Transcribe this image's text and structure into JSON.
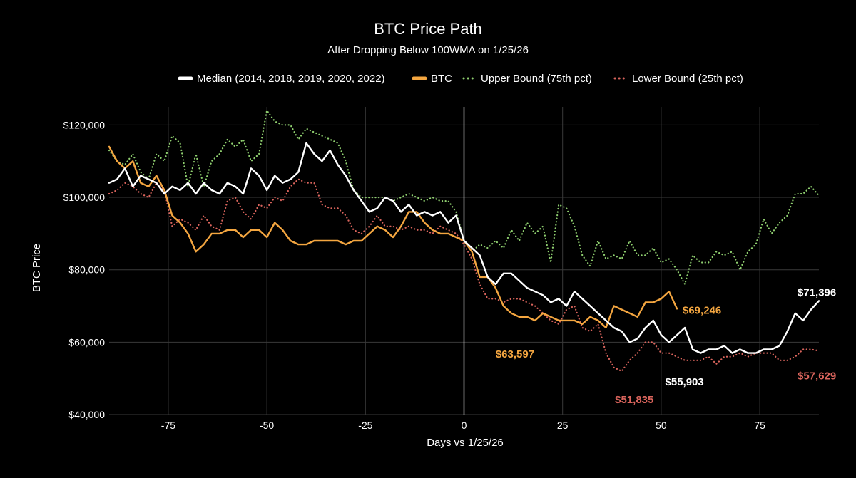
{
  "colors": {
    "background": "#000000",
    "median": "#ffffff",
    "btc": "#f4a640",
    "upper": "#8fcf6f",
    "lower": "#d9645c",
    "grid": "#3a3a3a"
  },
  "chart_data": {
    "type": "line",
    "title": "BTC Price Path",
    "subtitle": "After Dropping Below 100WMA on 1/25/26",
    "xlabel": "Days vs 1/25/26",
    "ylabel": "BTC Price",
    "xlim": [
      -90,
      90
    ],
    "ylim": [
      40000,
      125000
    ],
    "xticks": [
      -75,
      -50,
      -25,
      0,
      25,
      50,
      75
    ],
    "yticks": [
      40000,
      60000,
      80000,
      100000,
      120000
    ],
    "ytick_labels": [
      "$40,000",
      "$60,000",
      "$80,000",
      "$100,000",
      "$120,000"
    ],
    "legend": "top-center",
    "series": [
      {
        "name": "Median (2014, 2018, 2019, 2020, 2022)",
        "style": "solid",
        "x": [
          -90,
          -88,
          -86,
          -84,
          -82,
          -80,
          -78,
          -76,
          -74,
          -72,
          -70,
          -68,
          -66,
          -64,
          -62,
          -60,
          -58,
          -56,
          -54,
          -52,
          -50,
          -48,
          -46,
          -44,
          -42,
          -40,
          -38,
          -36,
          -34,
          -32,
          -30,
          -28,
          -26,
          -24,
          -22,
          -20,
          -18,
          -16,
          -14,
          -12,
          -10,
          -8,
          -6,
          -4,
          -2,
          0,
          2,
          4,
          6,
          8,
          10,
          12,
          14,
          16,
          18,
          20,
          22,
          24,
          26,
          28,
          30,
          32,
          34,
          36,
          38,
          40,
          42,
          44,
          46,
          48,
          50,
          52,
          54,
          56,
          58,
          60,
          62,
          64,
          66,
          68,
          70,
          72,
          74,
          76,
          78,
          80,
          82,
          84,
          86,
          88,
          90
        ],
        "values": [
          104000,
          105000,
          108000,
          103000,
          106000,
          105000,
          104000,
          101000,
          103000,
          102000,
          104000,
          101000,
          104000,
          102000,
          101000,
          104000,
          103000,
          101000,
          108000,
          106000,
          102000,
          106000,
          104000,
          105000,
          107000,
          115000,
          112000,
          110000,
          113000,
          109000,
          106000,
          102000,
          99000,
          96000,
          97000,
          100000,
          99000,
          96000,
          98000,
          95000,
          96000,
          95000,
          96000,
          93000,
          95000,
          88000,
          86000,
          84000,
          78000,
          76000,
          79000,
          79000,
          77000,
          75000,
          74000,
          73000,
          71000,
          72000,
          70000,
          74000,
          72000,
          70000,
          68000,
          66000,
          64000,
          63000,
          60000,
          61000,
          64000,
          66000,
          62000,
          60000,
          62000,
          64000,
          58000,
          57000,
          58000,
          58000,
          59000,
          57000,
          58000,
          57000,
          57000,
          58000,
          58000,
          59000,
          63000,
          68000,
          66000,
          69000,
          71396
        ]
      },
      {
        "name": "BTC",
        "style": "solid",
        "x": [
          -90,
          -88,
          -86,
          -84,
          -82,
          -80,
          -78,
          -76,
          -74,
          -72,
          -70,
          -68,
          -66,
          -64,
          -62,
          -60,
          -58,
          -56,
          -54,
          -52,
          -50,
          -48,
          -46,
          -44,
          -42,
          -40,
          -38,
          -36,
          -34,
          -32,
          -30,
          -28,
          -26,
          -24,
          -22,
          -20,
          -18,
          -16,
          -14,
          -12,
          -10,
          -8,
          -6,
          -4,
          -2,
          0,
          2,
          4,
          6,
          8,
          10,
          12,
          14,
          16,
          18,
          20,
          22,
          24,
          26,
          28,
          30,
          32,
          34,
          36,
          38,
          40,
          42,
          44,
          46,
          48,
          50,
          52,
          54
        ],
        "values": [
          114000,
          110000,
          108000,
          110000,
          104000,
          103000,
          106000,
          102000,
          95000,
          93000,
          90000,
          85000,
          87000,
          90000,
          90000,
          91000,
          91000,
          89000,
          91000,
          91000,
          89000,
          93000,
          91000,
          88000,
          87000,
          87000,
          88000,
          88000,
          88000,
          88000,
          87000,
          88000,
          88000,
          90000,
          92000,
          91000,
          89000,
          92000,
          96000,
          96000,
          93000,
          91000,
          90000,
          90000,
          89000,
          88000,
          85000,
          78000,
          78000,
          75000,
          70000,
          68000,
          67000,
          67000,
          66000,
          68000,
          67000,
          66000,
          66000,
          66000,
          65000,
          67000,
          66000,
          64000,
          70000,
          69000,
          68000,
          67000,
          71000,
          71000,
          72000,
          74000,
          69246
        ]
      },
      {
        "name": "Upper Bound (75th pct)",
        "style": "dotted",
        "x": [
          -90,
          -88,
          -86,
          -84,
          -82,
          -80,
          -78,
          -76,
          -74,
          -72,
          -70,
          -68,
          -66,
          -64,
          -62,
          -60,
          -58,
          -56,
          -54,
          -52,
          -50,
          -48,
          -46,
          -44,
          -42,
          -40,
          -38,
          -36,
          -34,
          -32,
          -30,
          -28,
          -26,
          -24,
          -22,
          -20,
          -18,
          -16,
          -14,
          -12,
          -10,
          -8,
          -6,
          -4,
          -2,
          0,
          2,
          4,
          6,
          8,
          10,
          12,
          14,
          16,
          18,
          20,
          22,
          24,
          26,
          28,
          30,
          32,
          34,
          36,
          38,
          40,
          42,
          44,
          46,
          48,
          50,
          52,
          54,
          56,
          58,
          60,
          62,
          64,
          66,
          68,
          70,
          72,
          74,
          76,
          78,
          80,
          82,
          84,
          86,
          88,
          90
        ],
        "values": [
          113000,
          110000,
          109000,
          112000,
          107000,
          105000,
          112000,
          110000,
          117000,
          115000,
          103000,
          112000,
          103000,
          110000,
          112000,
          116000,
          114000,
          116000,
          110000,
          112000,
          124000,
          121000,
          120000,
          120000,
          116000,
          119000,
          118000,
          117000,
          116000,
          115000,
          110000,
          102000,
          100000,
          100000,
          100000,
          100000,
          99000,
          100000,
          101000,
          100000,
          99000,
          100000,
          99000,
          99000,
          96000,
          88000,
          85000,
          87000,
          86000,
          88000,
          86000,
          91000,
          88000,
          93000,
          90000,
          92000,
          82000,
          98000,
          97000,
          92000,
          84000,
          81000,
          88000,
          83000,
          84000,
          83000,
          88000,
          84000,
          84000,
          86000,
          82000,
          83000,
          80000,
          76000,
          84000,
          82000,
          82000,
          85000,
          84000,
          85000,
          80000,
          85000,
          87000,
          94000,
          90000,
          93000,
          95000,
          101000,
          101000,
          103000,
          100500
        ]
      },
      {
        "name": "Lower Bound (25th pct)",
        "style": "dotted",
        "x": [
          -90,
          -88,
          -86,
          -84,
          -82,
          -80,
          -78,
          -76,
          -74,
          -72,
          -70,
          -68,
          -66,
          -64,
          -62,
          -60,
          -58,
          -56,
          -54,
          -52,
          -50,
          -48,
          -46,
          -44,
          -42,
          -40,
          -38,
          -36,
          -34,
          -32,
          -30,
          -28,
          -26,
          -24,
          -22,
          -20,
          -18,
          -16,
          -14,
          -12,
          -10,
          -8,
          -6,
          -4,
          -2,
          0,
          2,
          4,
          6,
          8,
          10,
          12,
          14,
          16,
          18,
          20,
          22,
          24,
          26,
          28,
          30,
          32,
          34,
          36,
          38,
          40,
          42,
          44,
          46,
          48,
          50,
          52,
          54,
          56,
          58,
          60,
          62,
          64,
          66,
          68,
          70,
          72,
          74,
          76,
          78,
          80,
          82,
          84,
          86,
          88,
          90
        ],
        "values": [
          101000,
          102000,
          104000,
          103000,
          101000,
          100000,
          104000,
          102000,
          92000,
          94000,
          93000,
          91000,
          95000,
          92000,
          91000,
          99000,
          100000,
          96000,
          94000,
          98000,
          97000,
          100000,
          99000,
          103000,
          105000,
          104000,
          104000,
          98000,
          97000,
          97000,
          95000,
          91000,
          90000,
          92000,
          95000,
          92000,
          92000,
          91000,
          92000,
          91000,
          91000,
          90000,
          92000,
          91000,
          90000,
          87000,
          83000,
          76000,
          72000,
          72000,
          71000,
          72000,
          72000,
          71000,
          70000,
          68000,
          66000,
          65000,
          69000,
          70000,
          64000,
          63000,
          65000,
          57000,
          53000,
          52000,
          55000,
          57000,
          60000,
          60000,
          57000,
          57000,
          56000,
          55000,
          55000,
          55000,
          56000,
          54000,
          56000,
          56000,
          57000,
          56000,
          57000,
          57000,
          57000,
          55000,
          55000,
          56000,
          58000,
          58000,
          57629
        ]
      }
    ],
    "annotations": [
      {
        "text": "$69,246",
        "x": 54,
        "y": 69246,
        "color": "btc"
      },
      {
        "text": "$63,597",
        "x": 12,
        "y": 63597,
        "color": "btc"
      },
      {
        "text": "$71,396",
        "x": 90,
        "y": 71396,
        "color": "median"
      },
      {
        "text": "$55,903",
        "x": 55,
        "y": 55903,
        "color": "median"
      },
      {
        "text": "$51,835",
        "x": 41,
        "y": 51835,
        "color": "lower"
      },
      {
        "text": "$57,629",
        "x": 90,
        "y": 57629,
        "color": "lower"
      }
    ]
  }
}
